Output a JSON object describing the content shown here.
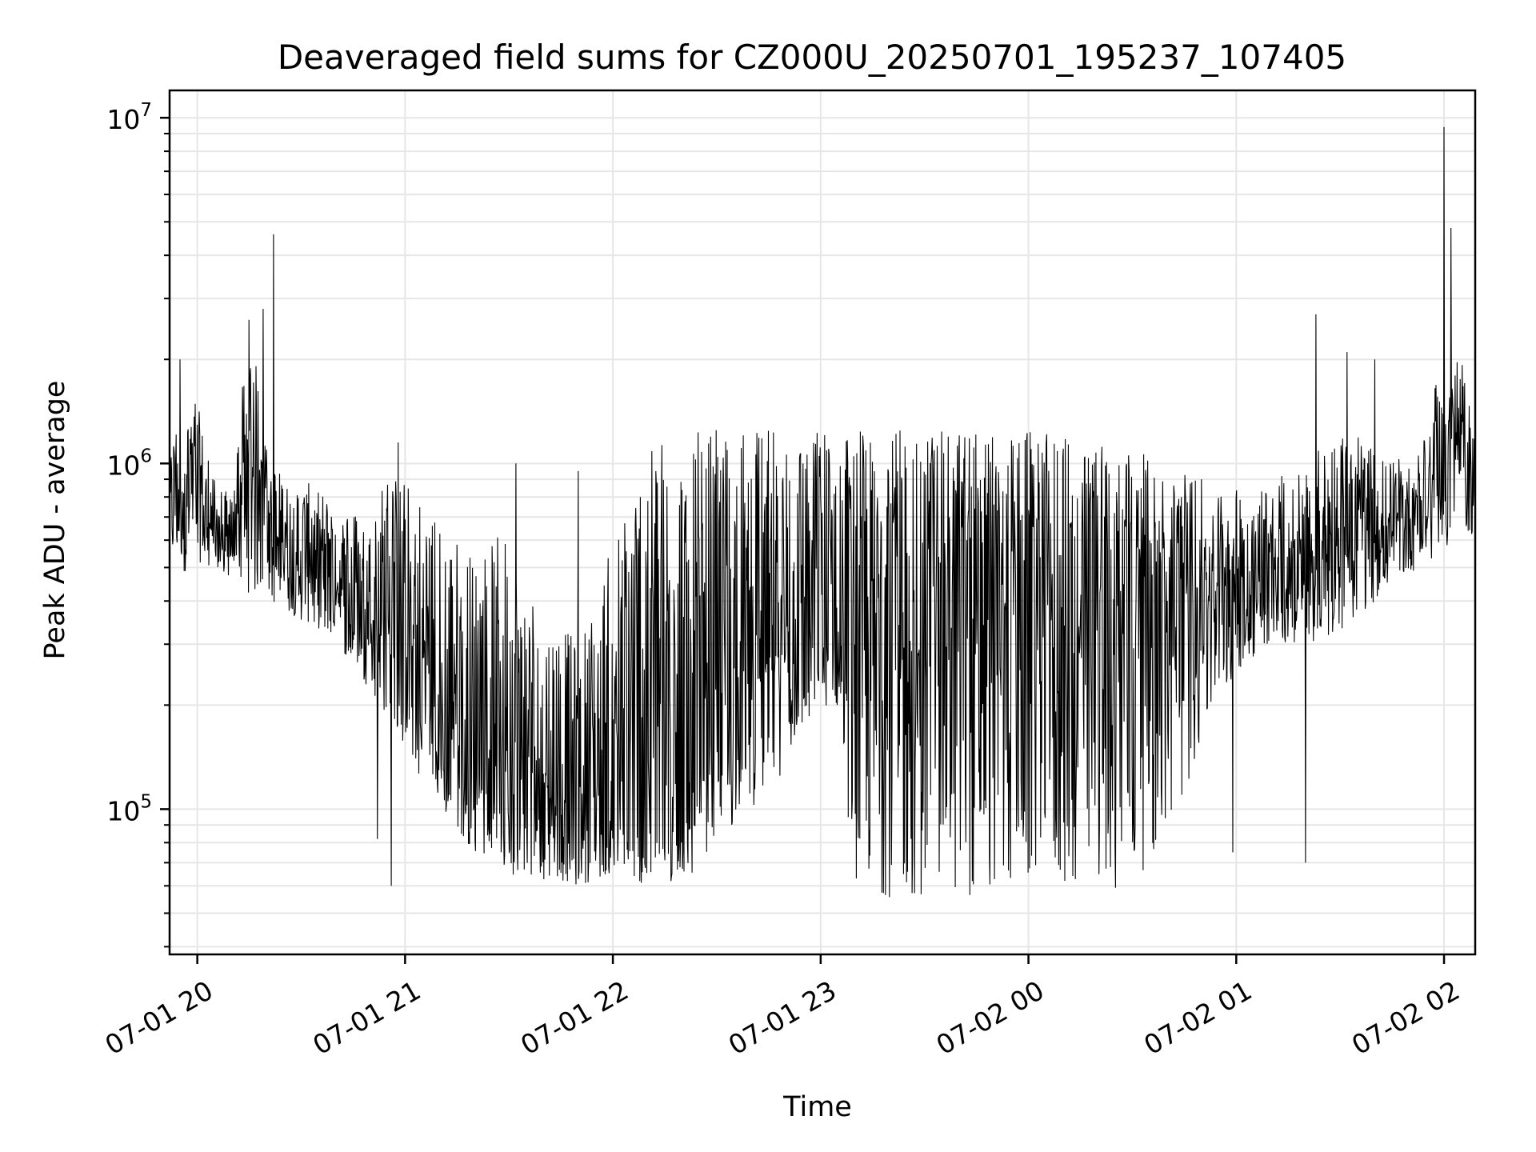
{
  "chart_data": {
    "type": "line",
    "title": "Deaveraged field sums for CZ000U_20250701_195237_107405",
    "xlabel": "Time",
    "ylabel": "Peak ADU - average",
    "yscale": "log",
    "ylim": [
      38000,
      12000000
    ],
    "xlim": [
      "07-01 19:52",
      "07-02 02:09"
    ],
    "grid": true,
    "line_color": "#000000",
    "x_ticks": [
      {
        "t": "07-01 20:00",
        "label": "07-01 20"
      },
      {
        "t": "07-01 21:00",
        "label": "07-01 21"
      },
      {
        "t": "07-01 22:00",
        "label": "07-01 22"
      },
      {
        "t": "07-01 23:00",
        "label": "07-01 23"
      },
      {
        "t": "07-02 00:00",
        "label": "07-02 00"
      },
      {
        "t": "07-02 01:00",
        "label": "07-02 01"
      },
      {
        "t": "07-02 02:00",
        "label": "07-02 02"
      }
    ],
    "y_ticks": [
      {
        "value": 100000,
        "base": "10",
        "exp": "5"
      },
      {
        "value": 1000000,
        "base": "10",
        "exp": "6"
      },
      {
        "value": 10000000,
        "base": "10",
        "exp": "7"
      }
    ],
    "series": [
      {
        "x": [
          "07-01 19:52",
          "07-01 19:56",
          "07-01 20:00",
          "07-01 20:05",
          "07-01 20:10",
          "07-01 20:15",
          "07-01 20:20",
          "07-01 20:25",
          "07-01 20:30",
          "07-01 20:35",
          "07-01 20:40",
          "07-01 20:45",
          "07-01 20:50",
          "07-01 20:55",
          "07-01 21:00",
          "07-01 21:10",
          "07-01 21:20",
          "07-01 21:30",
          "07-01 21:40",
          "07-01 21:50",
          "07-01 22:00",
          "07-01 22:10",
          "07-01 22:20",
          "07-01 22:30",
          "07-01 22:40",
          "07-01 22:50",
          "07-01 23:00",
          "07-01 23:05",
          "07-01 23:10",
          "07-01 23:15",
          "07-01 23:20",
          "07-01 23:30",
          "07-01 23:40",
          "07-01 23:50",
          "07-02 00:00",
          "07-02 00:10",
          "07-02 00:20",
          "07-02 00:30",
          "07-02 00:40",
          "07-02 00:50",
          "07-02 01:00",
          "07-02 01:10",
          "07-02 01:20",
          "07-02 01:30",
          "07-02 01:40",
          "07-02 01:50",
          "07-02 02:00",
          "07-02 02:05",
          "07-02 02:09"
        ],
        "low": [
          500000,
          480000,
          520000,
          500000,
          460000,
          420000,
          400000,
          380000,
          350000,
          330000,
          300000,
          260000,
          220000,
          180000,
          140000,
          100000,
          75000,
          65000,
          62000,
          60000,
          65000,
          60000,
          60000,
          80000,
          100000,
          130000,
          200000,
          180000,
          60000,
          58000,
          55000,
          55000,
          55000,
          57000,
          58000,
          57000,
          58000,
          60000,
          80000,
          150000,
          250000,
          300000,
          300000,
          320000,
          400000,
          480000,
          550000,
          650000,
          600000
        ],
        "mid": [
          800000,
          850000,
          700000,
          580000,
          550000,
          1100000,
          800000,
          550000,
          500000,
          460000,
          420000,
          380000,
          340000,
          280000,
          220000,
          150000,
          110000,
          95000,
          90000,
          85000,
          90000,
          85000,
          85000,
          150000,
          250000,
          300000,
          350000,
          400000,
          400000,
          420000,
          450000,
          500000,
          520000,
          530000,
          540000,
          520000,
          500000,
          480000,
          450000,
          420000,
          400000,
          430000,
          450000,
          480000,
          650000,
          750000,
          850000,
          1100000,
          950000
        ],
        "high": [
          1000000,
          2000000,
          1500000,
          900000,
          800000,
          2700000,
          1200000,
          900000,
          900000,
          850000,
          800000,
          750000,
          700000,
          1000000,
          900000,
          700000,
          550000,
          650000,
          400000,
          300000,
          600000,
          1300000,
          1250000,
          1250000,
          1250000,
          1300000,
          1300000,
          1300000,
          1250000,
          1250000,
          1250000,
          1250000,
          1250000,
          1250000,
          1250000,
          1200000,
          1150000,
          1100000,
          1000000,
          900000,
          850000,
          900000,
          1000000,
          1300000,
          1100000,
          1000000,
          2000000,
          2000000,
          1200000
        ]
      }
    ],
    "spikes": [
      {
        "x": "07-01 20:22",
        "y": 4600000
      },
      {
        "x": "07-01 20:19",
        "y": 2800000
      },
      {
        "x": "07-01 19:55",
        "y": 2000000
      },
      {
        "x": "07-01 20:58",
        "y": 1150000
      },
      {
        "x": "07-01 21:32",
        "y": 1000000
      },
      {
        "x": "07-01 21:50",
        "y": 950000
      },
      {
        "x": "07-02 01:23",
        "y": 2700000
      },
      {
        "x": "07-02 01:32",
        "y": 2100000
      },
      {
        "x": "07-02 01:40",
        "y": 2000000
      },
      {
        "x": "07-02 02:00",
        "y": 9400000
      },
      {
        "x": "07-02 02:02",
        "y": 4800000
      },
      {
        "x": "07-02 01:20",
        "y": 70000
      },
      {
        "x": "07-02 00:59",
        "y": 75000
      },
      {
        "x": "07-01 20:56",
        "y": 60000
      },
      {
        "x": "07-01 20:52",
        "y": 82000
      }
    ]
  }
}
